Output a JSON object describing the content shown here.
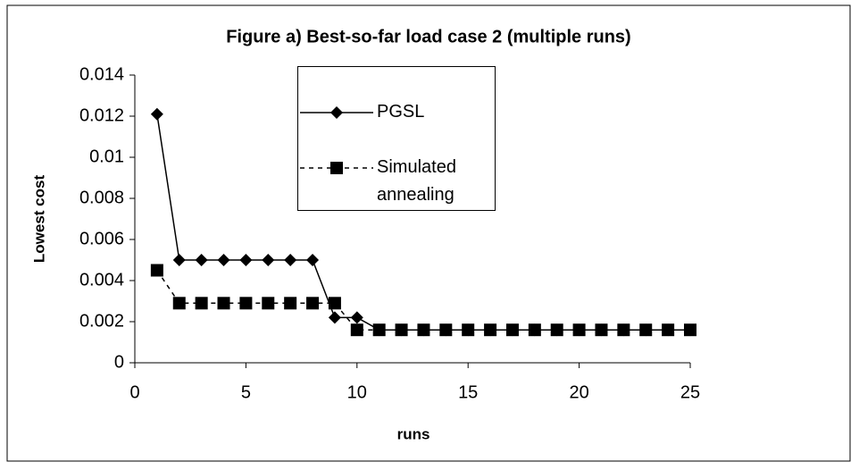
{
  "chart_data": {
    "type": "line",
    "title": "Figure a) Best-so-far load case 2 (multiple runs)",
    "x_label": "runs",
    "y_label": "Lowest cost",
    "x": [
      1,
      2,
      3,
      4,
      5,
      6,
      7,
      8,
      9,
      10,
      11,
      12,
      13,
      14,
      15,
      16,
      17,
      18,
      19,
      20,
      21,
      22,
      23,
      24,
      25
    ],
    "series": [
      {
        "name": "PGSL",
        "color": "#000000",
        "marker": "diamond",
        "line_style": "solid",
        "values": [
          0.0121,
          0.005,
          0.005,
          0.005,
          0.005,
          0.005,
          0.005,
          0.005,
          0.0022,
          0.0022,
          0.0016,
          0.0016,
          0.0016,
          0.0016,
          0.0016,
          0.0016,
          0.0016,
          0.0016,
          0.0016,
          0.0016,
          0.0016,
          0.0016,
          0.0016,
          0.0016,
          0.0016
        ]
      },
      {
        "name": "Simulated annealing",
        "color": "#000000",
        "marker": "square",
        "line_style": "dashed",
        "values": [
          0.0045,
          0.0029,
          0.0029,
          0.0029,
          0.0029,
          0.0029,
          0.0029,
          0.0029,
          0.0029,
          0.0016,
          0.0016,
          0.0016,
          0.0016,
          0.0016,
          0.0016,
          0.0016,
          0.0016,
          0.0016,
          0.0016,
          0.0016,
          0.0016,
          0.0016,
          0.0016,
          0.0016,
          0.0016
        ]
      }
    ],
    "xlim": [
      0,
      25
    ],
    "xticks": [
      0,
      5,
      10,
      15,
      20,
      25
    ],
    "ylim": [
      0,
      0.014
    ],
    "yticks": [
      0,
      0.002,
      0.004,
      0.006,
      0.008,
      0.01,
      0.012,
      0.014
    ],
    "grid": false
  }
}
